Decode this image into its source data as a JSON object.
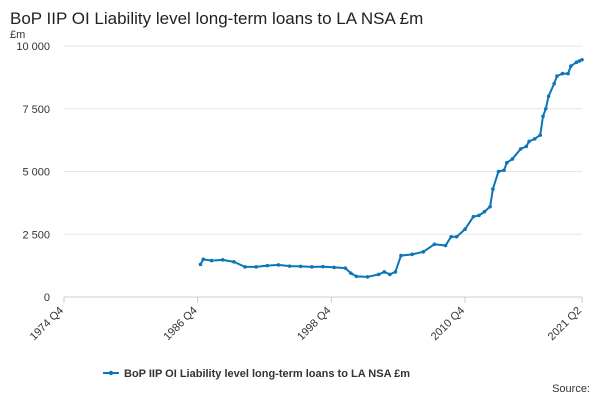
{
  "chart_data": {
    "type": "line",
    "title": "BoP IIP OI Liability level long-term loans to LA NSA £m",
    "y_label": "£m",
    "source": "Source:",
    "xlim": [
      1974.75,
      2021.25
    ],
    "xticks": [
      {
        "value": 1974.75,
        "label": "1974 Q4"
      },
      {
        "value": 1986.75,
        "label": "1986 Q4"
      },
      {
        "value": 1998.75,
        "label": "1998 Q4"
      },
      {
        "value": 2010.75,
        "label": "2010 Q4"
      },
      {
        "value": 2021.25,
        "label": "2021 Q2"
      }
    ],
    "ylim": [
      0,
      10000
    ],
    "yticks": [
      0,
      {
        "value": 2500,
        "label": "2 500"
      },
      {
        "value": 5000,
        "label": "5 000"
      },
      {
        "value": 7500,
        "label": "7 500"
      },
      {
        "value": 10000,
        "label": "10 000"
      }
    ],
    "grid": true,
    "legend": "bottom",
    "x": [
      1987.0,
      1987.25,
      1988.0,
      1989.0,
      1990.0,
      1991.0,
      1992.0,
      1993.0,
      1994.0,
      1995.0,
      1996.0,
      1997.0,
      1998.0,
      1999.0,
      2000.0,
      2000.5,
      2001.0,
      2002.0,
      2003.0,
      2003.5,
      2004.0,
      2004.5,
      2005.0,
      2006.0,
      2007.0,
      2008.0,
      2009.0,
      2009.5,
      2010.0,
      2010.75,
      2011.5,
      2012.0,
      2012.5,
      2013.0,
      2013.25,
      2013.75,
      2014.25,
      2014.5,
      2015.0,
      2015.75,
      2016.25,
      2016.5,
      2017.0,
      2017.5,
      2017.75,
      2018.0,
      2018.25,
      2018.75,
      2019.0,
      2019.5,
      2020.0,
      2020.25,
      2020.75,
      2021.0,
      2021.25
    ],
    "series": [
      {
        "name": "BoP IIP OI Liability level long-term loans to LA NSA £m",
        "color": "#0b75b8",
        "values": [
          1300,
          1500,
          1450,
          1480,
          1400,
          1200,
          1200,
          1250,
          1280,
          1230,
          1220,
          1200,
          1210,
          1180,
          1150,
          950,
          820,
          800,
          900,
          1000,
          900,
          1000,
          1650,
          1700,
          1800,
          2100,
          2050,
          2400,
          2400,
          2700,
          3200,
          3250,
          3400,
          3600,
          4300,
          5000,
          5050,
          5350,
          5500,
          5900,
          6000,
          6200,
          6300,
          6450,
          7200,
          7500,
          8000,
          8500,
          8800,
          8900,
          8900,
          9200,
          9350,
          9400,
          9450
        ]
      }
    ]
  }
}
